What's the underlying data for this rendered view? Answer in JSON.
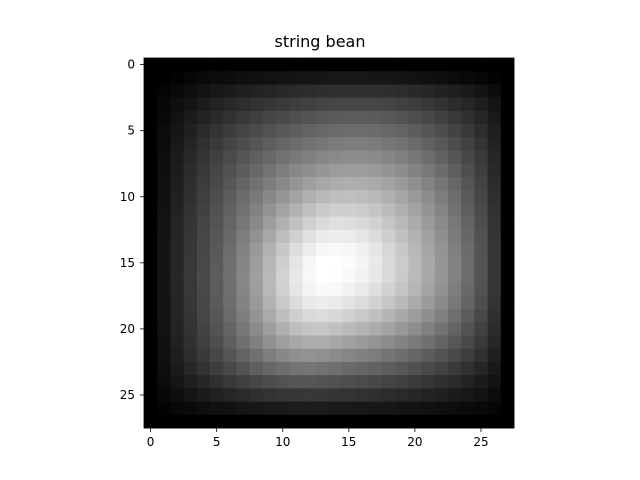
{
  "chart_data": {
    "type": "heatmap",
    "title": "string bean",
    "xlabel": "",
    "ylabel": "",
    "colormap": "gray",
    "grid": false,
    "legend": "none",
    "rows": 28,
    "cols": 28,
    "x_ticks": [
      "0",
      "5",
      "10",
      "15",
      "20",
      "25"
    ],
    "y_ticks": [
      "0",
      "5",
      "10",
      "15",
      "20",
      "25"
    ],
    "x_tick_values": [
      0,
      5,
      10,
      15,
      20,
      25
    ],
    "y_tick_values": [
      0,
      5,
      10,
      15,
      20,
      25
    ],
    "value_range": [
      0,
      255
    ],
    "values": [
      [
        0,
        0,
        0,
        0,
        0,
        0,
        0,
        0,
        0,
        0,
        0,
        0,
        0,
        0,
        0,
        0,
        0,
        0,
        0,
        0,
        0,
        0,
        0,
        0,
        0,
        0,
        0,
        0
      ],
      [
        0,
        0,
        3,
        6,
        9,
        11,
        13,
        15,
        16,
        18,
        19,
        20,
        21,
        22,
        23,
        23,
        23,
        22,
        21,
        20,
        18,
        16,
        14,
        11,
        9,
        6,
        3,
        0
      ],
      [
        0,
        4,
        9,
        14,
        19,
        23,
        27,
        31,
        34,
        37,
        40,
        42,
        44,
        46,
        47,
        48,
        48,
        47,
        46,
        44,
        41,
        38,
        34,
        30,
        26,
        20,
        13,
        0
      ],
      [
        0,
        7,
        14,
        21,
        28,
        34,
        40,
        45,
        50,
        54,
        58,
        62,
        65,
        68,
        70,
        71,
        71,
        70,
        68,
        65,
        61,
        56,
        50,
        44,
        38,
        30,
        20,
        0
      ],
      [
        0,
        9,
        18,
        27,
        35,
        43,
        50,
        57,
        63,
        69,
        74,
        79,
        83,
        87,
        90,
        92,
        92,
        90,
        87,
        83,
        78,
        72,
        65,
        57,
        48,
        38,
        25,
        0
      ],
      [
        0,
        11,
        21,
        32,
        42,
        51,
        60,
        68,
        75,
        82,
        88,
        94,
        99,
        104,
        107,
        109,
        109,
        107,
        104,
        99,
        93,
        86,
        77,
        67,
        57,
        45,
        30,
        0
      ],
      [
        0,
        12,
        24,
        36,
        48,
        58,
        68,
        77,
        86,
        94,
        101,
        108,
        114,
        119,
        123,
        125,
        125,
        123,
        119,
        114,
        107,
        98,
        88,
        77,
        65,
        51,
        34,
        0
      ],
      [
        0,
        14,
        27,
        40,
        53,
        64,
        75,
        85,
        95,
        104,
        113,
        121,
        128,
        134,
        138,
        141,
        141,
        138,
        133,
        127,
        119,
        109,
        98,
        86,
        72,
        57,
        38,
        0
      ],
      [
        0,
        15,
        29,
        43,
        56,
        69,
        81,
        93,
        104,
        115,
        125,
        135,
        143,
        150,
        155,
        157,
        157,
        154,
        148,
        141,
        131,
        120,
        108,
        94,
        79,
        62,
        41,
        0
      ],
      [
        0,
        16,
        31,
        46,
        60,
        73,
        87,
        100,
        113,
        125,
        137,
        149,
        159,
        167,
        172,
        174,
        173,
        170,
        163,
        154,
        143,
        131,
        117,
        102,
        85,
        67,
        44,
        0
      ],
      [
        0,
        17,
        33,
        48,
        63,
        77,
        92,
        107,
        121,
        136,
        150,
        163,
        175,
        184,
        190,
        191,
        189,
        184,
        176,
        166,
        153,
        140,
        125,
        108,
        90,
        71,
        47,
        0
      ],
      [
        0,
        18,
        34,
        50,
        65,
        81,
        97,
        113,
        130,
        146,
        163,
        178,
        191,
        201,
        207,
        207,
        204,
        197,
        187,
        176,
        163,
        148,
        132,
        114,
        95,
        75,
        49,
        0
      ],
      [
        0,
        19,
        36,
        52,
        68,
        84,
        101,
        119,
        138,
        157,
        176,
        193,
        208,
        218,
        223,
        222,
        217,
        209,
        198,
        185,
        171,
        155,
        138,
        120,
        100,
        78,
        51,
        0
      ],
      [
        0,
        19,
        37,
        54,
        70,
        87,
        105,
        125,
        146,
        168,
        189,
        208,
        224,
        234,
        238,
        236,
        230,
        220,
        207,
        193,
        178,
        161,
        143,
        124,
        103,
        81,
        53,
        0
      ],
      [
        0,
        20,
        38,
        55,
        72,
        89,
        109,
        130,
        153,
        177,
        200,
        221,
        237,
        247,
        250,
        247,
        240,
        229,
        215,
        200,
        184,
        166,
        148,
        128,
        107,
        83,
        55,
        0
      ],
      [
        0,
        20,
        38,
        56,
        73,
        91,
        111,
        133,
        157,
        183,
        207,
        229,
        246,
        255,
        255,
        252,
        244,
        233,
        219,
        204,
        187,
        169,
        150,
        130,
        108,
        84,
        55,
        0
      ],
      [
        0,
        20,
        39,
        56,
        74,
        92,
        112,
        135,
        159,
        185,
        210,
        232,
        248,
        255,
        254,
        249,
        241,
        231,
        217,
        202,
        186,
        168,
        150,
        130,
        108,
        84,
        55,
        0
      ],
      [
        0,
        20,
        38,
        56,
        73,
        91,
        111,
        134,
        158,
        184,
        208,
        229,
        244,
        250,
        248,
        242,
        234,
        223,
        210,
        196,
        181,
        164,
        146,
        126,
        105,
        82,
        54,
        0
      ],
      [
        0,
        19,
        37,
        55,
        72,
        90,
        109,
        131,
        154,
        178,
        201,
        220,
        233,
        238,
        235,
        228,
        220,
        210,
        198,
        185,
        171,
        155,
        138,
        120,
        100,
        78,
        51,
        0
      ],
      [
        0,
        19,
        36,
        53,
        70,
        87,
        106,
        126,
        148,
        170,
        190,
        207,
        217,
        220,
        216,
        209,
        201,
        192,
        181,
        169,
        157,
        143,
        128,
        111,
        92,
        72,
        47,
        0
      ],
      [
        0,
        18,
        35,
        51,
        67,
        83,
        101,
        120,
        139,
        158,
        175,
        189,
        197,
        198,
        193,
        186,
        179,
        171,
        162,
        152,
        141,
        129,
        115,
        100,
        83,
        65,
        43,
        0
      ],
      [
        0,
        17,
        33,
        48,
        63,
        78,
        94,
        111,
        128,
        144,
        158,
        168,
        173,
        172,
        167,
        161,
        155,
        148,
        140,
        131,
        122,
        112,
        100,
        87,
        73,
        57,
        38,
        0
      ],
      [
        0,
        16,
        30,
        44,
        58,
        71,
        85,
        99,
        113,
        126,
        136,
        143,
        146,
        144,
        139,
        134,
        129,
        124,
        117,
        110,
        102,
        93,
        83,
        73,
        61,
        48,
        31,
        0
      ],
      [
        0,
        14,
        26,
        38,
        50,
        61,
        72,
        83,
        94,
        103,
        110,
        115,
        116,
        114,
        110,
        106,
        102,
        98,
        93,
        87,
        81,
        74,
        66,
        58,
        48,
        38,
        25,
        0
      ],
      [
        0,
        11,
        21,
        30,
        39,
        48,
        56,
        64,
        71,
        77,
        82,
        85,
        86,
        84,
        81,
        78,
        75,
        72,
        68,
        64,
        59,
        54,
        48,
        42,
        35,
        27,
        18,
        0
      ],
      [
        0,
        8,
        14,
        21,
        27,
        32,
        38,
        43,
        47,
        51,
        54,
        55,
        56,
        55,
        53,
        51,
        49,
        47,
        44,
        42,
        39,
        35,
        31,
        27,
        23,
        18,
        12,
        0
      ],
      [
        0,
        4,
        7,
        10,
        13,
        16,
        18,
        21,
        23,
        25,
        26,
        27,
        27,
        27,
        26,
        25,
        24,
        23,
        22,
        20,
        19,
        17,
        15,
        13,
        11,
        9,
        6,
        0
      ],
      [
        0,
        0,
        0,
        0,
        0,
        0,
        0,
        0,
        0,
        0,
        0,
        0,
        0,
        0,
        0,
        0,
        0,
        0,
        0,
        0,
        0,
        0,
        0,
        0,
        0,
        0,
        0,
        0
      ]
    ]
  }
}
